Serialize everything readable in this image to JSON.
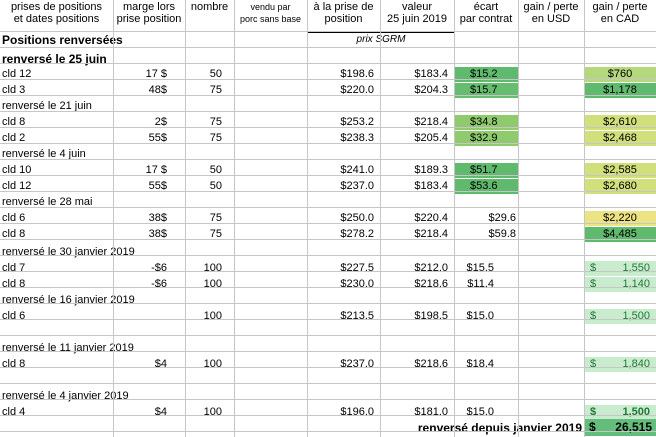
{
  "headers": {
    "col_a": [
      "prises de positions",
      "et dates positions"
    ],
    "col_b": [
      "marge lors",
      "prise position"
    ],
    "col_c": [
      "nombre"
    ],
    "col_d": [
      "vendu par",
      "porc sans base"
    ],
    "col_e": [
      "à la prise de",
      "position"
    ],
    "col_f": [
      "valeur",
      "25 juin 2019"
    ],
    "col_g": [
      "écart",
      "par contrat"
    ],
    "col_h": [
      "gain / perte",
      "en USD"
    ],
    "col_i": [
      "gain / perte",
      "en CAD"
    ]
  },
  "section_title": "Positions renversées",
  "prix_label": "prix SGRM",
  "subtitle": "renversé le 25 juin",
  "groups_a": [
    {
      "label": "",
      "rows": [
        {
          "contract": "cld 12",
          "marge": "17 $",
          "nombre": "50",
          "prise": "$198.6",
          "valeur": "$183.4",
          "ecart": "$15.2",
          "cad": "$760"
        },
        {
          "contract": "cld 3",
          "marge": "48$",
          "nombre": "75",
          "prise": "$220.0",
          "valeur": "$204.3",
          "ecart": "$15.7",
          "cad": "$1,178"
        }
      ]
    },
    {
      "label": "renversé le 21 juin",
      "rows": [
        {
          "contract": "cld 8",
          "marge": "2$",
          "nombre": "75",
          "prise": "$253.2",
          "valeur": "$218.4",
          "ecart": "$34.8",
          "cad": "$2,610"
        },
        {
          "contract": "cld 2",
          "marge": "55$",
          "nombre": "75",
          "prise": "$238.3",
          "valeur": "$205.4",
          "ecart": "$32.9",
          "cad": "$2,468"
        }
      ]
    },
    {
      "label": "renversé le 4 juin",
      "rows": [
        {
          "contract": "cld  10",
          "marge": "17 $",
          "nombre": "50",
          "prise": "$241.0",
          "valeur": "$189.3",
          "ecart": "$51.7",
          "cad": "$2,585"
        },
        {
          "contract": "cld 12",
          "marge": "55$",
          "nombre": "50",
          "prise": "$237.0",
          "valeur": "$183.4",
          "ecart": "$53.6",
          "cad": "$2,680"
        }
      ]
    },
    {
      "label": "renversé le 28 mai",
      "rows": [
        {
          "contract": "cld 6",
          "marge": "38$",
          "nombre": "75",
          "prise": "$250.0",
          "valeur": "$220.4",
          "ecart": "$29.6",
          "cad": "$2,220"
        },
        {
          "contract": "cld 8",
          "marge": "38$",
          "nombre": "75",
          "prise": "$278.2",
          "valeur": "$218.4",
          "ecart": "$59.8",
          "cad": "$4,485"
        }
      ]
    }
  ],
  "groups_b": [
    {
      "label": "renversé le 30 janvier 2019",
      "rows": [
        {
          "contract": "cld 7",
          "marge": "-$6",
          "nombre": "100",
          "prise": "$227.5",
          "valeur": "$212.0",
          "ecart": "$15.5",
          "cad_sym": "$",
          "cad": "1,550"
        },
        {
          "contract": "cld 8",
          "marge": "-$6",
          "nombre": "100",
          "prise": "$230.0",
          "valeur": "$218.6",
          "ecart": "$11.4",
          "cad_sym": "$",
          "cad": "1,140"
        }
      ]
    },
    {
      "label": "renversé le 16 janvier 2019",
      "rows": [
        {
          "contract": "cld 6",
          "marge": "",
          "nombre": "100",
          "prise": "$213.5",
          "valeur": "$198.5",
          "ecart": "$15.0",
          "cad_sym": "$",
          "cad": "1,500"
        }
      ]
    },
    {
      "label": "renversé le 11 janvier 2019",
      "rows": [
        {
          "contract": "cld 8",
          "marge": "$4",
          "nombre": "100",
          "prise": "$237.0",
          "valeur": "$218.6",
          "ecart": "$18.4",
          "cad_sym": "$",
          "cad": "1,840"
        }
      ]
    },
    {
      "label": "renversé le 4 janvier 2019",
      "rows": [
        {
          "contract": "cld 4",
          "marge": "$4",
          "nombre": "100",
          "prise": "$196.0",
          "valeur": "$181.0",
          "ecart": "$15.0",
          "cad_sym": "$",
          "cad": "1,500"
        }
      ]
    }
  ],
  "total": {
    "label": "renversé depuis janvier 2019",
    "sym": "$",
    "value": "26,515"
  },
  "colors": {
    "green_dark": "#5fba6d",
    "green_mid": "#8fcb6c",
    "green_light": "#b5d87d",
    "lime": "#d1e07a",
    "yellow": "#ece383",
    "mint": "#c8eccd",
    "total_bg": "#63be7b"
  }
}
